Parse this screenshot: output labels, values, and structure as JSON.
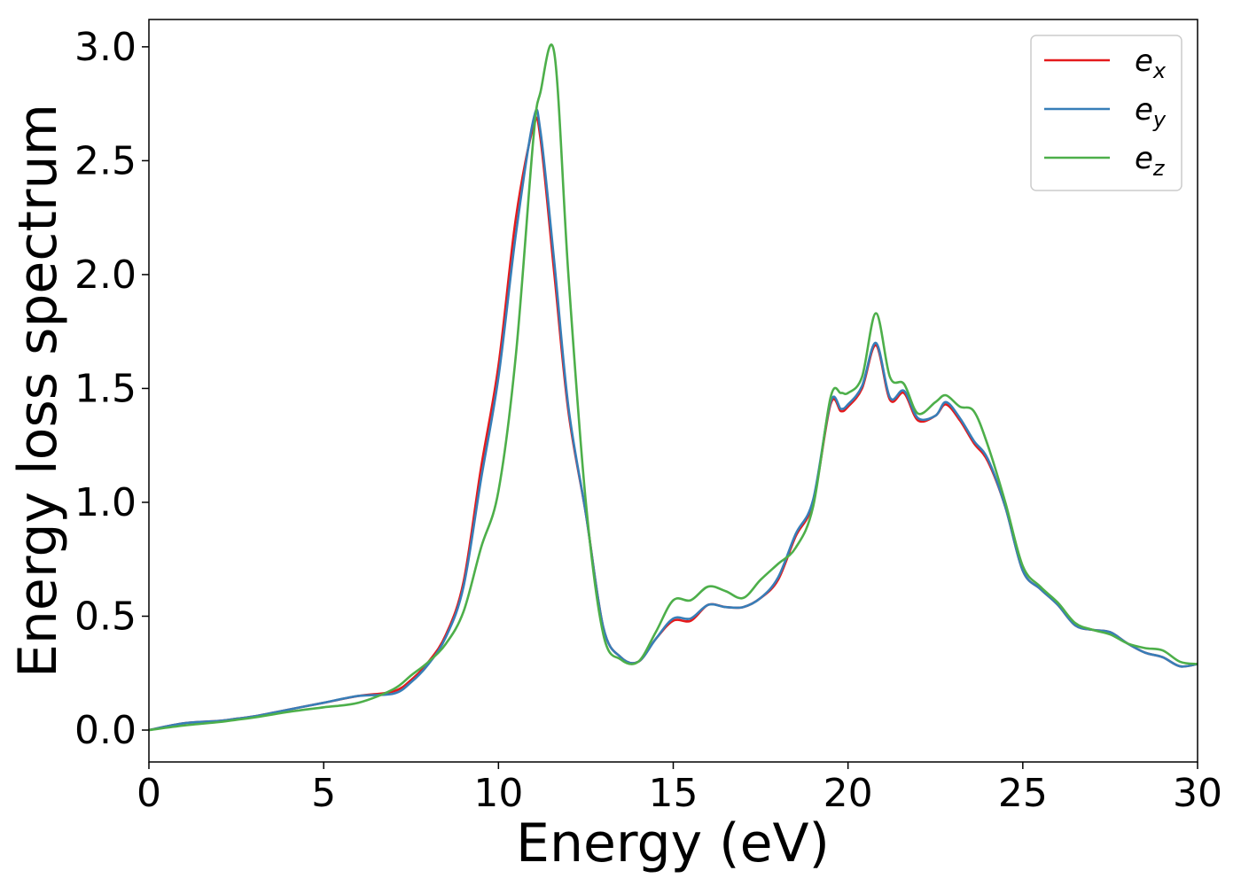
{
  "chart_data": {
    "type": "line",
    "xlabel": "Energy (eV)",
    "ylabel": "Energy loss spectrum",
    "xlim": [
      0,
      30
    ],
    "ylim": [
      -0.14,
      3.12
    ],
    "xticks": [
      0,
      5,
      10,
      15,
      20,
      25,
      30
    ],
    "xtick_labels": [
      "0",
      "5",
      "10",
      "15",
      "20",
      "25",
      "30"
    ],
    "yticks": [
      0.0,
      0.5,
      1.0,
      1.5,
      2.0,
      2.5,
      3.0
    ],
    "ytick_labels": [
      "0.0",
      "0.5",
      "1.0",
      "1.5",
      "2.0",
      "2.5",
      "3.0"
    ],
    "grid": false,
    "legend_position": "top-right",
    "x": [
      0,
      1,
      2,
      2.5,
      3,
      4,
      5,
      6,
      7,
      7.5,
      8,
      8.5,
      9,
      9.5,
      10,
      10.5,
      11,
      11.2,
      11.6,
      12,
      12.5,
      13,
      13.5,
      14,
      14.5,
      15,
      15.5,
      16,
      16.5,
      17,
      17.5,
      18,
      18.5,
      19,
      19.5,
      19.8,
      20,
      20.4,
      20.8,
      21.2,
      21.6,
      22,
      22.5,
      22.8,
      23.2,
      23.6,
      24,
      24.5,
      25,
      25.5,
      26,
      26.5,
      27,
      27.5,
      28,
      28.5,
      29,
      29.5,
      30
    ],
    "series": [
      {
        "name": "x",
        "color": "#e41a1c",
        "values": [
          0.0,
          0.03,
          0.04,
          0.05,
          0.06,
          0.09,
          0.12,
          0.15,
          0.17,
          0.22,
          0.3,
          0.42,
          0.65,
          1.15,
          1.6,
          2.25,
          2.65,
          2.6,
          2.0,
          1.4,
          0.95,
          0.45,
          0.32,
          0.3,
          0.4,
          0.48,
          0.48,
          0.55,
          0.54,
          0.54,
          0.58,
          0.66,
          0.85,
          1.0,
          1.43,
          1.4,
          1.42,
          1.5,
          1.69,
          1.45,
          1.48,
          1.36,
          1.38,
          1.43,
          1.36,
          1.26,
          1.18,
          0.98,
          0.7,
          0.62,
          0.55,
          0.46,
          0.44,
          0.43,
          0.38,
          0.34,
          0.32,
          0.28,
          0.29
        ]
      },
      {
        "name": "y",
        "color": "#377eb8",
        "values": [
          0.0,
          0.03,
          0.04,
          0.05,
          0.06,
          0.09,
          0.12,
          0.15,
          0.16,
          0.21,
          0.29,
          0.41,
          0.63,
          1.1,
          1.55,
          2.18,
          2.68,
          2.63,
          2.05,
          1.42,
          0.95,
          0.45,
          0.32,
          0.3,
          0.4,
          0.49,
          0.49,
          0.55,
          0.54,
          0.54,
          0.58,
          0.67,
          0.86,
          1.01,
          1.44,
          1.41,
          1.43,
          1.51,
          1.7,
          1.46,
          1.49,
          1.37,
          1.38,
          1.44,
          1.37,
          1.27,
          1.19,
          0.98,
          0.7,
          0.62,
          0.55,
          0.46,
          0.44,
          0.43,
          0.38,
          0.34,
          0.32,
          0.28,
          0.29
        ]
      },
      {
        "name": "z",
        "color": "#4daf4a",
        "values": [
          0.0,
          0.02,
          0.035,
          0.045,
          0.055,
          0.08,
          0.1,
          0.12,
          0.18,
          0.24,
          0.3,
          0.38,
          0.52,
          0.8,
          1.05,
          1.65,
          2.6,
          2.8,
          2.97,
          2.0,
          1.0,
          0.42,
          0.31,
          0.3,
          0.43,
          0.57,
          0.57,
          0.63,
          0.61,
          0.58,
          0.66,
          0.73,
          0.8,
          0.98,
          1.46,
          1.48,
          1.48,
          1.55,
          1.83,
          1.55,
          1.52,
          1.39,
          1.44,
          1.47,
          1.42,
          1.4,
          1.25,
          1.0,
          0.72,
          0.63,
          0.56,
          0.47,
          0.44,
          0.42,
          0.38,
          0.36,
          0.35,
          0.3,
          0.29
        ]
      }
    ]
  }
}
